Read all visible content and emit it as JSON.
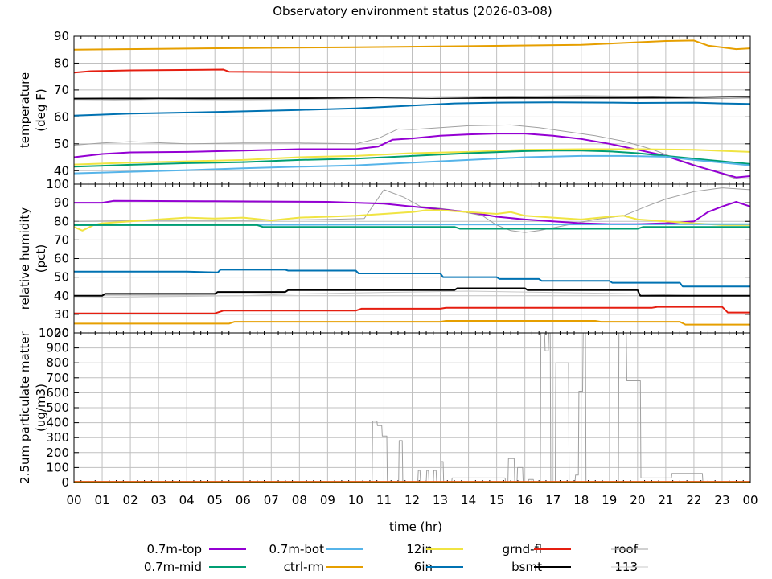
{
  "chart_data": {
    "type": "line",
    "title": "Observatory environment status (2026-03-08)",
    "xlabel": "time (hr)",
    "x_ticks": [
      "00",
      "01",
      "02",
      "03",
      "04",
      "05",
      "06",
      "07",
      "08",
      "09",
      "10",
      "11",
      "12",
      "13",
      "14",
      "15",
      "16",
      "17",
      "18",
      "19",
      "20",
      "21",
      "22",
      "23",
      "00"
    ],
    "xlim": [
      0,
      24
    ],
    "grid": true,
    "legend_position": "bottom",
    "legend": [
      {
        "name": "0.7m-top",
        "color": "#9400d3"
      },
      {
        "name": "0.7m-bot",
        "color": "#56b4e9"
      },
      {
        "name": "12in",
        "color": "#f0e442"
      },
      {
        "name": "grnd-fl",
        "color": "#e51e10"
      },
      {
        "name": "roof",
        "color": "#a0a0a0"
      },
      {
        "name": "0.7m-mid",
        "color": "#009e73"
      },
      {
        "name": "ctrl-rm",
        "color": "#e69f00"
      },
      {
        "name": "6in",
        "color": "#0072b2"
      },
      {
        "name": "bsmt",
        "color": "#000000"
      },
      {
        "name": "113",
        "color": "#c8c8c8"
      }
    ],
    "panels": [
      {
        "ylabel": [
          "temperature",
          "(deg F)"
        ],
        "ylim": [
          35,
          90
        ],
        "yticks": [
          40,
          50,
          60,
          70,
          80,
          90
        ],
        "series": [
          {
            "name": "ctrl-rm",
            "color": "#e69f00",
            "x": [
              0,
              3,
              6,
              10,
              14,
              18,
              19.5,
              21,
              22,
              22.5,
              23.5,
              24
            ],
            "y": [
              85,
              85.3,
              85.6,
              85.9,
              86.3,
              86.8,
              87.5,
              88.2,
              88.4,
              86.5,
              85.2,
              85.5
            ]
          },
          {
            "name": "grnd-fl",
            "color": "#e51e10",
            "x": [
              0,
              0.6,
              2,
              5.3,
              5.5,
              8,
              12,
              16,
              20,
              24
            ],
            "y": [
              76.5,
              77,
              77.3,
              77.6,
              76.8,
              76.6,
              76.6,
              76.6,
              76.6,
              76.6
            ]
          },
          {
            "name": "bsmt",
            "color": "#000000",
            "x": [
              0,
              24
            ],
            "y": [
              66.8,
              67.2
            ]
          },
          {
            "name": "6in",
            "color": "#0072b2",
            "x": [
              0,
              2,
              5,
              8,
              10,
              12,
              13.5,
              15,
              17,
              19,
              20,
              22,
              23,
              24
            ],
            "y": [
              60.5,
              61.2,
              61.8,
              62.6,
              63.2,
              64.2,
              65,
              65.3,
              65.4,
              65.3,
              65.2,
              65.3,
              65,
              64.8
            ]
          },
          {
            "name": "roof",
            "color": "#a0a0a0",
            "x": [
              0,
              1,
              2,
              4,
              6,
              8,
              10,
              10.8,
              11.5,
              12,
              14,
              15.5,
              16.5,
              17.5,
              18.5,
              19.5,
              20.5,
              21.5,
              22.5,
              23.5,
              24
            ],
            "y": [
              49.5,
              50.3,
              50.8,
              50,
              50.3,
              50.3,
              50,
              52,
              55.5,
              55.3,
              56.7,
              57,
              56,
              54.5,
              53,
              51,
              48,
              44,
              40.5,
              37,
              37
            ]
          },
          {
            "name": "113",
            "color": "#c8c8c8",
            "x": [
              0,
              3,
              6,
              9,
              12,
              15,
              18,
              21,
              24
            ],
            "y": [
              66,
              66.5,
              66.3,
              66.6,
              67,
              67.5,
              68,
              67.5,
              67
            ]
          },
          {
            "name": "0.7m-top",
            "color": "#9400d3",
            "x": [
              0,
              1,
              2,
              4,
              6,
              8,
              10,
              10.8,
              11.3,
              12,
              13,
              14,
              15,
              16,
              17,
              18,
              19,
              20,
              21,
              22,
              23,
              23.5,
              24
            ],
            "y": [
              45,
              46.2,
              46.8,
              47,
              47.5,
              48,
              48,
              49,
              51.5,
              52,
              53,
              53.5,
              53.8,
              53.8,
              53,
              51.8,
              50,
              47.8,
              45.5,
              42,
              39,
              37.5,
              38
            ]
          },
          {
            "name": "12in",
            "color": "#f0e442",
            "x": [
              0,
              2,
              4,
              6,
              8,
              10,
              12,
              14,
              16,
              18,
              20,
              22,
              24
            ],
            "y": [
              42.3,
              43,
              43.5,
              44,
              45,
              45.5,
              46.5,
              47,
              47.8,
              48,
              48,
              47.8,
              47
            ]
          },
          {
            "name": "0.7m-mid",
            "color": "#009e73",
            "x": [
              0,
              2,
              4,
              6,
              8,
              10,
              12,
              14,
              16,
              17,
              18,
              19,
              20,
              21,
              22,
              23,
              24
            ],
            "y": [
              41.5,
              42.2,
              42.8,
              43.2,
              44,
              44.5,
              45.5,
              46.5,
              47.3,
              47.5,
              47.5,
              47.2,
              46.5,
              45.5,
              44.5,
              43.5,
              42.5
            ]
          },
          {
            "name": "0.7m-bot",
            "color": "#56b4e9",
            "x": [
              0,
              2,
              4,
              6,
              8,
              10,
              12,
              14,
              16,
              18,
              19.5,
              21,
              22,
              23,
              24
            ],
            "y": [
              39,
              39.6,
              40.2,
              40.9,
              41.5,
              42,
              43,
              44,
              45,
              45.5,
              45.5,
              45.2,
              44,
              43,
              42
            ]
          }
        ]
      },
      {
        "ylabel": [
          "relative humidity",
          "(pct)"
        ],
        "ylim": [
          20,
          100
        ],
        "yticks": [
          20,
          30,
          40,
          50,
          60,
          70,
          80,
          90,
          100
        ],
        "series": [
          {
            "name": "roof",
            "color": "#a0a0a0",
            "x": [
              0,
              3,
              6,
              9,
              10.3,
              11,
              11.7,
              12.3,
              13,
              13.5,
              14.5,
              15,
              15.5,
              16,
              16.5,
              17.5,
              18.5,
              19.5,
              20.3,
              21,
              22,
              23,
              24
            ],
            "y": [
              80,
              80.5,
              80.5,
              81,
              81.5,
              97,
              93,
              88,
              87,
              86,
              83,
              78,
              75,
              74,
              75,
              78,
              81,
              83,
              88,
              92,
              96,
              98,
              97
            ]
          },
          {
            "name": "0.7m-top",
            "color": "#9400d3",
            "x": [
              0,
              1,
              1.4,
              5,
              9,
              11,
              12,
              13,
              14,
              15,
              16,
              17,
              18,
              19,
              20,
              21,
              22,
              22.5,
              23,
              23.5,
              24
            ],
            "y": [
              90,
              90,
              91,
              90.8,
              90.5,
              89.5,
              88,
              86.5,
              85,
              82.5,
              81,
              80,
              79,
              78.5,
              78.5,
              79,
              80,
              85,
              88,
              90.5,
              88
            ]
          },
          {
            "name": "12in",
            "color": "#f0e442",
            "x": [
              0,
              0.3,
              0.7,
              1,
              2,
              3,
              4,
              5,
              6,
              7,
              8,
              9,
              10,
              11,
              12,
              12.5,
              13,
              14,
              15,
              15.5,
              16,
              17,
              18,
              19,
              19.5,
              20,
              21,
              22,
              23,
              24
            ],
            "y": [
              77,
              75,
              78,
              79,
              80,
              81,
              82,
              81.5,
              82,
              80.5,
              82,
              82.5,
              83,
              84,
              85,
              86,
              86,
              85,
              84,
              85,
              83,
              82,
              81,
              82.5,
              83,
              81,
              80,
              79,
              78,
              78
            ]
          },
          {
            "name": "0.7m-bot",
            "color": "#56b4e9",
            "x": [
              0,
              24
            ],
            "y": [
              78,
              78.5
            ]
          },
          {
            "name": "0.7m-mid",
            "color": "#009e73",
            "x": [
              0,
              6.5,
              6.7,
              13.5,
              13.7,
              20,
              20.2,
              24
            ],
            "y": [
              78,
              78,
              77,
              77,
              76,
              76,
              77,
              77
            ]
          },
          {
            "name": "6in",
            "color": "#0072b2",
            "x": [
              0,
              4,
              5.1,
              5.2,
              7.5,
              7.6,
              10,
              10.1,
              13,
              13.1,
              15,
              15.1,
              16.5,
              16.6,
              19,
              19.1,
              21.5,
              21.6,
              24
            ],
            "y": [
              53,
              53,
              52.5,
              54,
              54,
              53.5,
              53.5,
              52,
              52,
              50,
              50,
              49,
              49,
              48,
              48,
              47,
              47,
              45,
              45
            ]
          },
          {
            "name": "113",
            "color": "#c8c8c8",
            "x": [
              0,
              3,
              6,
              8,
              10,
              12,
              14,
              16,
              18,
              20,
              22,
              24
            ],
            "y": [
              39,
              39.5,
              40,
              41,
              41.5,
              42,
              42.5,
              42,
              41.5,
              41,
              40,
              40
            ]
          },
          {
            "name": "bsmt",
            "color": "#000000",
            "x": [
              0,
              1,
              1.1,
              5,
              5.1,
              7.5,
              7.6,
              13.5,
              13.6,
              16,
              16.1,
              20,
              20.1,
              24
            ],
            "y": [
              40,
              40,
              41,
              41,
              42,
              42,
              43,
              43,
              44,
              44,
              43,
              43,
              40,
              40
            ]
          },
          {
            "name": "grnd-fl",
            "color": "#e51e10",
            "x": [
              0,
              5,
              5.3,
              10,
              10.2,
              13,
              13.2,
              20.5,
              20.7,
              23,
              23.2,
              24
            ],
            "y": [
              30.5,
              30.5,
              32,
              32,
              33,
              33,
              33.5,
              33.5,
              34,
              34,
              31,
              31
            ]
          },
          {
            "name": "ctrl-rm",
            "color": "#e69f00",
            "x": [
              0,
              5.5,
              5.7,
              13,
              13.2,
              18.5,
              18.7,
              21.5,
              21.7,
              24
            ],
            "y": [
              25,
              25,
              26,
              26,
              26.5,
              26.5,
              26,
              26,
              24.5,
              24.5
            ]
          }
        ]
      },
      {
        "ylabel": [
          "2.5um particulate matter",
          "(ug/m3)"
        ],
        "ylim": [
          0,
          1000
        ],
        "yticks": [
          0,
          100,
          200,
          300,
          400,
          500,
          600,
          700,
          800,
          900,
          1000
        ],
        "series": [
          {
            "name": "roof",
            "color": "#a0a0a0",
            "x": [
              0,
              10.58,
              10.6,
              10.75,
              10.77,
              10.92,
              10.94,
              11.1,
              11.12,
              11.52,
              11.54,
              11.65,
              11.67,
              12.2,
              12.22,
              12.28,
              12.3,
              12.5,
              12.52,
              12.58,
              12.6,
              12.75,
              12.77,
              12.85,
              12.87,
              13.02,
              13.04,
              13.1,
              13.12,
              13.4,
              13.42,
              15.3,
              15.32,
              15.4,
              15.42,
              15.62,
              15.64,
              15.72,
              15.74,
              15.92,
              15.94,
              16.05,
              16.07,
              16.12,
              16.14,
              16.3,
              16.32,
              16.55,
              16.57,
              16.7,
              16.72,
              16.83,
              16.85,
              16.9,
              16.92,
              17.08,
              17.1,
              17.55,
              17.57,
              17.78,
              17.8,
              17.9,
              17.92,
              18.05,
              18.07,
              18.15,
              18.17,
              19.32,
              19.34,
              19.6,
              19.62,
              20.1,
              20.12,
              21.2,
              21.22,
              22.3,
              22.32,
              24
            ],
            "y": [
              0,
              0,
              410,
              410,
              380,
              380,
              310,
              310,
              0,
              0,
              280,
              280,
              0,
              0,
              80,
              80,
              0,
              0,
              80,
              80,
              0,
              0,
              80,
              80,
              0,
              0,
              140,
              140,
              0,
              0,
              30,
              30,
              0,
              0,
              160,
              160,
              0,
              0,
              100,
              100,
              0,
              0,
              5,
              5,
              20,
              20,
              0,
              0,
              1000,
              1000,
              880,
              880,
              1000,
              1000,
              0,
              0,
              800,
              800,
              0,
              0,
              50,
              50,
              610,
              610,
              1000,
              1000,
              0,
              0,
              1000,
              1000,
              680,
              680,
              30,
              30,
              60,
              60,
              0,
              0
            ]
          },
          {
            "name": "grnd-fl",
            "color": "#e51e10",
            "x": [
              0,
              24
            ],
            "y": [
              5,
              5
            ]
          },
          {
            "name": "ctrl-rm",
            "color": "#e69f00",
            "x": [
              0,
              24
            ],
            "y": [
              2,
              2
            ]
          }
        ]
      }
    ]
  }
}
